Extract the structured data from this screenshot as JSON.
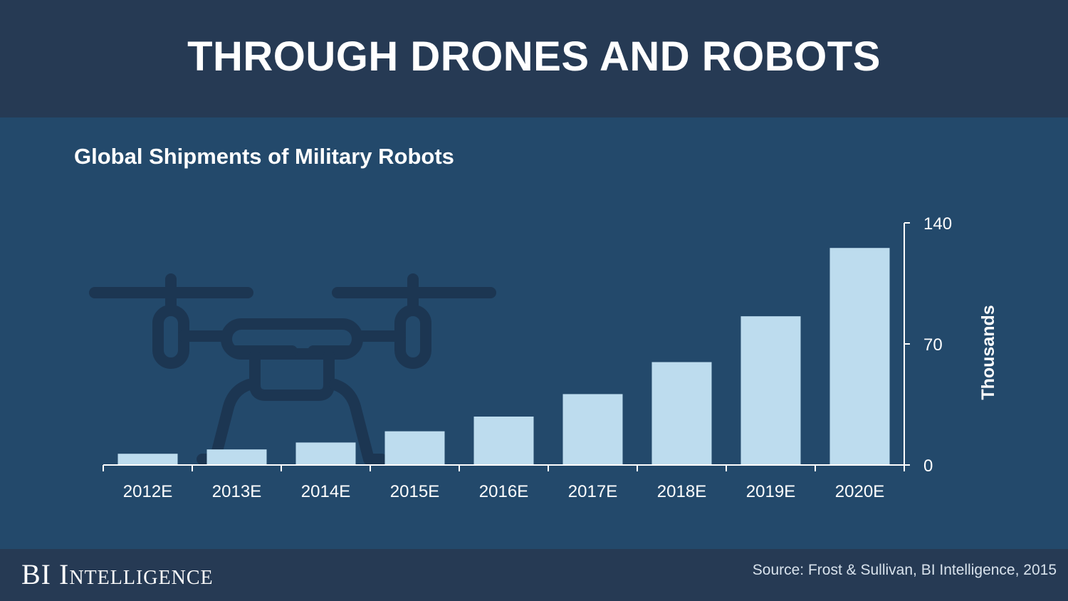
{
  "header": {
    "title": "THROUGH DRONES AND ROBOTS"
  },
  "icon": "drone-icon",
  "colors": {
    "background": "#23496b",
    "header_bg": "#263a54",
    "bar": "#bddcee",
    "drone": "#1c3652",
    "axis": "#ffffff"
  },
  "chart_data": {
    "type": "bar",
    "title": "Global Shipments of Military Robots",
    "categories": [
      "2012E",
      "2013E",
      "2014E",
      "2015E",
      "2016E",
      "2017E",
      "2018E",
      "2019E",
      "2020E"
    ],
    "values": [
      6.5,
      9,
      13,
      19.5,
      28,
      41,
      59.5,
      86,
      125.5
    ],
    "ylabel": "Thousands",
    "ylim": [
      0,
      140
    ],
    "yticks": [
      "0",
      "70",
      "140"
    ],
    "y_axis_side": "right",
    "grid": false
  },
  "footer": {
    "brand": "BI Intelligence",
    "source": "Source: Frost & Sullivan, BI Intelligence, 2015"
  }
}
